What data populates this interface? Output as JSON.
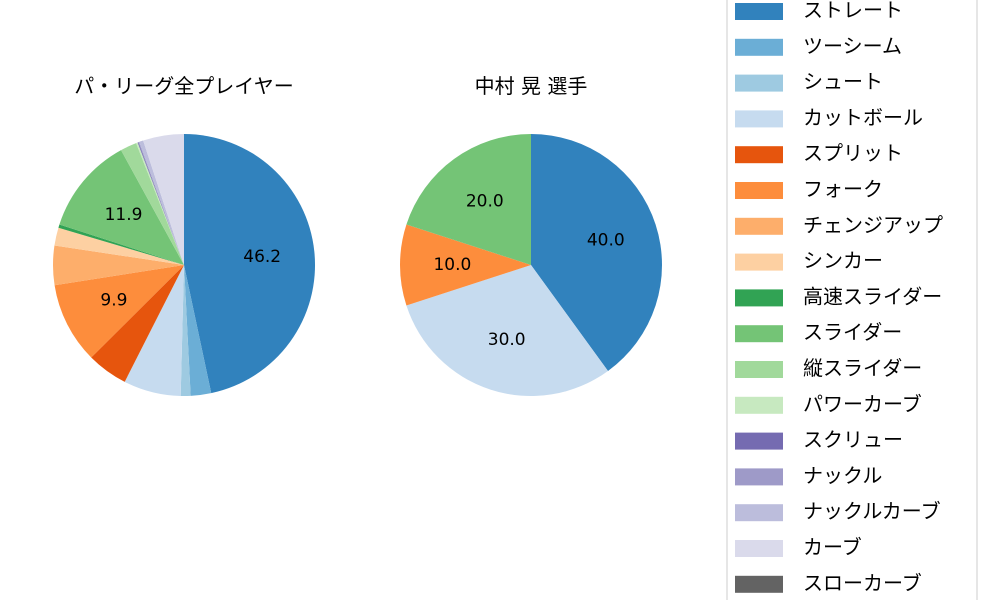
{
  "chart_data": [
    {
      "type": "pie",
      "title": "パ・リーグ全プレイヤー",
      "start_angle_deg": 90,
      "direction": "clockwise",
      "slices": [
        {
          "label": "ストレート",
          "value": 46.2,
          "color": "#3182bd",
          "data_label": "46.2"
        },
        {
          "label": "ツーシーム",
          "value": 2.5,
          "color": "#6baed6",
          "data_label": ""
        },
        {
          "label": "シュート",
          "value": 1.2,
          "color": "#9ecae1",
          "data_label": ""
        },
        {
          "label": "カットボール",
          "value": 7.0,
          "color": "#c6dbef",
          "data_label": ""
        },
        {
          "label": "スプリット",
          "value": 5.0,
          "color": "#e6550d",
          "data_label": ""
        },
        {
          "label": "フォーク",
          "value": 9.9,
          "color": "#fd8d3c",
          "data_label": "9.9"
        },
        {
          "label": "チェンジアップ",
          "value": 4.8,
          "color": "#fdae6b",
          "data_label": ""
        },
        {
          "label": "シンカー",
          "value": 2.2,
          "color": "#fdd0a2",
          "data_label": ""
        },
        {
          "label": "高速スライダー",
          "value": 0.4,
          "color": "#31a354",
          "data_label": ""
        },
        {
          "label": "スライダー",
          "value": 11.9,
          "color": "#74c476",
          "data_label": "11.9"
        },
        {
          "label": "縦スライダー",
          "value": 2.0,
          "color": "#a1d99b",
          "data_label": ""
        },
        {
          "label": "パワーカーブ",
          "value": 0.2,
          "color": "#c7e9c0",
          "data_label": ""
        },
        {
          "label": "スクリュー",
          "value": 0.1,
          "color": "#756bb1",
          "data_label": ""
        },
        {
          "label": "ナックル",
          "value": 0.1,
          "color": "#9e9ac8",
          "data_label": ""
        },
        {
          "label": "ナックルカーブ",
          "value": 0.5,
          "color": "#bcbddc",
          "data_label": ""
        },
        {
          "label": "カーブ",
          "value": 5.0,
          "color": "#dadaeb",
          "data_label": ""
        },
        {
          "label": "スローカーブ",
          "value": 0.0,
          "color": "#636363",
          "data_label": ""
        }
      ]
    },
    {
      "type": "pie",
      "title": "中村 晃  選手",
      "start_angle_deg": 90,
      "direction": "clockwise",
      "slices": [
        {
          "label": "ストレート",
          "value": 40.0,
          "color": "#3182bd",
          "data_label": "40.0"
        },
        {
          "label": "カットボール",
          "value": 30.0,
          "color": "#c6dbef",
          "data_label": "30.0"
        },
        {
          "label": "フォーク",
          "value": 10.0,
          "color": "#fd8d3c",
          "data_label": "10.0"
        },
        {
          "label": "スライダー",
          "value": 20.0,
          "color": "#74c476",
          "data_label": "20.0"
        }
      ]
    }
  ],
  "legend": {
    "placement": "right",
    "entries": [
      {
        "label": "ストレート",
        "color": "#3182bd"
      },
      {
        "label": "ツーシーム",
        "color": "#6baed6"
      },
      {
        "label": "シュート",
        "color": "#9ecae1"
      },
      {
        "label": "カットボール",
        "color": "#c6dbef"
      },
      {
        "label": "スプリット",
        "color": "#e6550d"
      },
      {
        "label": "フォーク",
        "color": "#fd8d3c"
      },
      {
        "label": "チェンジアップ",
        "color": "#fdae6b"
      },
      {
        "label": "シンカー",
        "color": "#fdd0a2"
      },
      {
        "label": "高速スライダー",
        "color": "#31a354"
      },
      {
        "label": "スライダー",
        "color": "#74c476"
      },
      {
        "label": "縦スライダー",
        "color": "#a1d99b"
      },
      {
        "label": "パワーカーブ",
        "color": "#c7e9c0"
      },
      {
        "label": "スクリュー",
        "color": "#756bb1"
      },
      {
        "label": "ナックル",
        "color": "#9e9ac8"
      },
      {
        "label": "ナックルカーブ",
        "color": "#bcbddc"
      },
      {
        "label": "カーブ",
        "color": "#dadaeb"
      },
      {
        "label": "スローカーブ",
        "color": "#636363"
      }
    ]
  }
}
